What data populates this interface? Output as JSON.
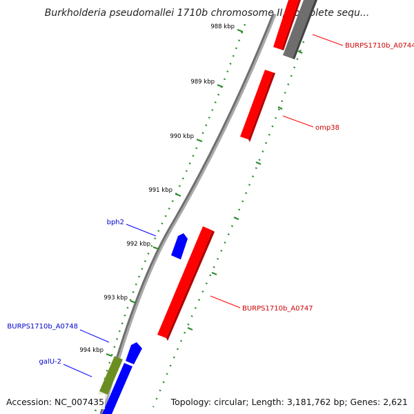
{
  "title": "Burkholderia pseudomallei 1710b chromosome II, complete sequ...",
  "accession": "Accession: NC_007435",
  "topology": "Topology: circular; Length: 3,181,762 bp; Genes: 2,621",
  "ticks": [
    {
      "label": "988 kbp",
      "kbp": 988
    },
    {
      "label": "989 kbp",
      "kbp": 989
    },
    {
      "label": "990 kbp",
      "kbp": 990
    },
    {
      "label": "991 kbp",
      "kbp": 991
    },
    {
      "label": "992 kbp",
      "kbp": 992
    },
    {
      "label": "993 kbp",
      "kbp": 993
    },
    {
      "label": "994 kbp",
      "kbp": 994
    }
  ],
  "genes": [
    {
      "id": "g-a0744",
      "label": "BURPS1710b_A0744",
      "color": "#ff0000",
      "label_color": "#cc0000"
    },
    {
      "id": "g-grey",
      "label": "",
      "color": "#6e6e6e",
      "label_color": ""
    },
    {
      "id": "g-omp38",
      "label": "omp38",
      "color": "#ff0000",
      "label_color": "#cc0000"
    },
    {
      "id": "g-bph2",
      "label": "bph2",
      "color": "#0000ff",
      "label_color": "#0000cc"
    },
    {
      "id": "g-a0747",
      "label": "BURPS1710b_A0747",
      "color": "#ff0000",
      "label_color": "#cc0000"
    },
    {
      "id": "g-a0748",
      "label": "BURPS1710b_A0748",
      "color": "#0000ff",
      "label_color": "#0000cc"
    },
    {
      "id": "g-galu2",
      "label": "galU-2",
      "color": "#6b8e23",
      "label_color": "#0000cc"
    },
    {
      "id": "g-blue-low",
      "label": "",
      "color": "#0000ff",
      "label_color": ""
    }
  ]
}
